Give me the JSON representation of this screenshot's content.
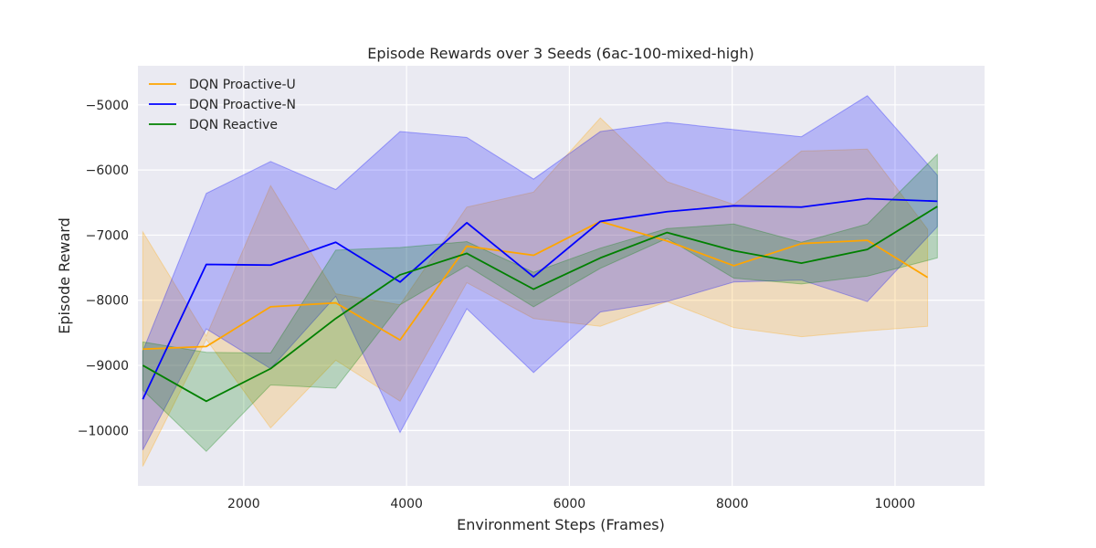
{
  "chart_data": {
    "type": "line",
    "title": "Episode Rewards over 3 Seeds (6ac-100-mixed-high)",
    "xlabel": "Environment Steps (Frames)",
    "ylabel": "Episode Reward",
    "xlim": [
      700,
      11100
    ],
    "ylim": [
      -10850,
      -4400
    ],
    "xticks": [
      2000,
      4000,
      6000,
      8000,
      10000
    ],
    "yticks": [
      -10000,
      -9000,
      -8000,
      -7000,
      -6000,
      -5000
    ],
    "grid": true,
    "legend_position": "top-left",
    "series": [
      {
        "name": "DQN Proactive-U",
        "color": "#FFA500",
        "x": [
          760,
          1540,
          2330,
          3130,
          3920,
          4740,
          5560,
          6380,
          7200,
          8020,
          8850,
          9660,
          10400
        ],
        "mean": [
          -8750,
          -8710,
          -8100,
          -8040,
          -8610,
          -7170,
          -7310,
          -6790,
          -7090,
          -7470,
          -7130,
          -7080,
          -7650
        ],
        "lower": [
          -10550,
          -8600,
          -9960,
          -8920,
          -9550,
          -7730,
          -8280,
          -8400,
          -8020,
          -8420,
          -8560,
          -8470,
          -8400
        ],
        "upper": [
          -6950,
          -8550,
          -6240,
          -7900,
          -8070,
          -6570,
          -6340,
          -5200,
          -6180,
          -6530,
          -5710,
          -5680,
          -6910
        ]
      },
      {
        "name": "DQN Proactive-N",
        "color": "#0000FF",
        "x": [
          760,
          1540,
          2330,
          3130,
          3920,
          4740,
          5560,
          6380,
          7200,
          8020,
          8850,
          9660,
          10520
        ],
        "mean": [
          -9520,
          -7450,
          -7460,
          -7110,
          -7720,
          -6810,
          -7640,
          -6790,
          -6640,
          -6550,
          -6570,
          -6440,
          -6480
        ],
        "lower": [
          -10300,
          -8440,
          -9050,
          -7940,
          -10030,
          -8130,
          -9110,
          -8180,
          -8020,
          -7720,
          -7690,
          -8020,
          -6870
        ],
        "upper": [
          -8780,
          -6360,
          -5870,
          -6300,
          -5410,
          -5500,
          -6140,
          -5410,
          -5270,
          -5380,
          -5490,
          -4860,
          -6080
        ]
      },
      {
        "name": "DQN Reactive",
        "color": "#008000",
        "x": [
          760,
          1540,
          2330,
          3130,
          3920,
          4740,
          5560,
          6380,
          7200,
          8020,
          8850,
          9660,
          10520
        ],
        "mean": [
          -9000,
          -9550,
          -9050,
          -8280,
          -7610,
          -7280,
          -7830,
          -7350,
          -6960,
          -7240,
          -7430,
          -7220,
          -6560
        ],
        "lower": [
          -9380,
          -10320,
          -9300,
          -9350,
          -8070,
          -7470,
          -8100,
          -7510,
          -7050,
          -7660,
          -7750,
          -7630,
          -7350
        ],
        "upper": [
          -8640,
          -8800,
          -8810,
          -7230,
          -7190,
          -7100,
          -7570,
          -7200,
          -6900,
          -6830,
          -7110,
          -6830,
          -5760
        ]
      }
    ]
  }
}
